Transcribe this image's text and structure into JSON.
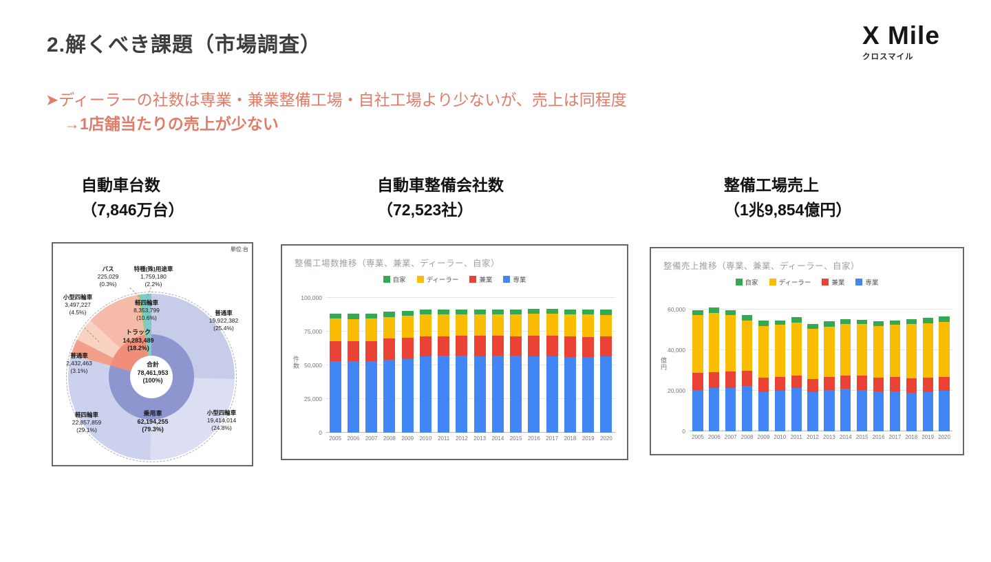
{
  "header": {
    "title": "2.解くべき課題（市場調査）"
  },
  "logo": {
    "name": "X Mile",
    "subtitle": "クロスマイル"
  },
  "callout": {
    "line1": "➤ディーラーの社数は専業・兼業整備工場・自社工場より少ないが、売上は同程度",
    "line2": "→1店舗当たりの売上が少ない",
    "color": "#e07b67"
  },
  "sections": [
    {
      "title": "自動車台数",
      "subtitle": "（7,846万台）"
    },
    {
      "title": "自動車整備会社数",
      "subtitle": "（72,523社）"
    },
    {
      "title": "整備工場売上",
      "subtitle": "（1兆9,854億円）"
    }
  ],
  "chart_data": [
    {
      "type": "pie",
      "title": "自動車台数（7,846万台）",
      "unit_label": "単位:台",
      "inner_ring": [
        {
          "name": "乗用車",
          "value": 62194255,
          "pct": 79.3,
          "color": "#8e96cf"
        },
        {
          "name": "トラック",
          "value": 14283489,
          "pct": 18.2,
          "color": "#f08e7a"
        },
        {
          "name": "バス",
          "value": 225029,
          "pct": 0.3,
          "color": "#b5c95f"
        },
        {
          "name": "特種(殊)用途車",
          "value": 1759180,
          "pct": 2.2,
          "color": "#7ecac4"
        }
      ],
      "outer_ring": [
        {
          "name": "普通車",
          "parent": "乗用車",
          "value": 19922382,
          "pct": 25.4,
          "color": "#c7cce9"
        },
        {
          "name": "小型四輪車",
          "parent": "乗用車",
          "value": 19414014,
          "pct": 24.8,
          "color": "#dcdff3"
        },
        {
          "name": "軽四輪車",
          "parent": "乗用車",
          "value": 22857859,
          "pct": 29.1,
          "color": "#ccd1ed"
        },
        {
          "name": "普通車",
          "parent": "トラック",
          "value": 2432463,
          "pct": 3.1,
          "color": "#f2a08c"
        },
        {
          "name": "小型四輪車",
          "parent": "トラック",
          "value": 3497227,
          "pct": 4.5,
          "color": "#fad2c2"
        },
        {
          "name": "軽四輪車",
          "parent": "トラック",
          "value": 8353799,
          "pct": 10.6,
          "color": "#f6bba8"
        },
        {
          "name": "バス",
          "parent": "バス",
          "value": 225029,
          "pct": 0.3,
          "color": "#b5c95f"
        },
        {
          "name": "特種(殊)用途車",
          "parent": "特種(殊)用途車",
          "value": 1759180,
          "pct": 2.2,
          "color": "#7ecac4"
        }
      ],
      "labels": {
        "bus": {
          "name": "バス",
          "value": "225,029",
          "pct": "(0.3%)"
        },
        "tokushu": {
          "name": "特種(殊)用途車",
          "value": "1,759,180",
          "pct": "(2.2%)"
        },
        "kei_truck": {
          "name": "軽四輪車",
          "value": "8,353,799",
          "pct": "(10.6%)"
        },
        "kogata_truck": {
          "name": "小型四輪車",
          "value": "3,497,227",
          "pct": "(4.5%)"
        },
        "truck": {
          "name": "トラック",
          "value": "14,283,489",
          "pct": "(18.2%)"
        },
        "futsu_truck": {
          "name": "普通車",
          "value": "2,432,463",
          "pct": "(3.1%)"
        },
        "futsu_pass": {
          "name": "普通車",
          "value": "19,922,382",
          "pct": "(25.4%)"
        },
        "total": {
          "name": "合計",
          "value": "78,461,953",
          "pct": "(100%)"
        },
        "jyoyo": {
          "name": "乗用車",
          "value": "62,194,255",
          "pct": "(79.3%)"
        },
        "kei_pass": {
          "name": "軽四輪車",
          "value": "22,857,859",
          "pct": "(29.1%)"
        },
        "kogata_pass": {
          "name": "小型四輪車",
          "value": "19,414,014",
          "pct": "(24.8%)"
        }
      }
    },
    {
      "type": "bar",
      "stacked": true,
      "title": "整備工場数推移（専業、兼業、ディーラー、自家）",
      "ylabel": "件数",
      "categories": [
        "2005",
        "2006",
        "2007",
        "2008",
        "2009",
        "2010",
        "2011",
        "2012",
        "2013",
        "2014",
        "2015",
        "2016",
        "2017",
        "2018",
        "2019",
        "2020"
      ],
      "series": [
        {
          "name": "専業",
          "color": "#4285f4",
          "values": [
            52900,
            53200,
            53300,
            54300,
            54600,
            56500,
            57200,
            57000,
            56800,
            57000,
            57200,
            56800,
            56800,
            56200,
            56100,
            56400
          ]
        },
        {
          "name": "兼業",
          "color": "#ea4335",
          "values": [
            14800,
            14900,
            14800,
            15600,
            15800,
            14700,
            14200,
            14900,
            14900,
            14700,
            14400,
            15400,
            15000,
            15200,
            15000,
            14900
          ]
        },
        {
          "name": "ディーラー",
          "color": "#fbbc04",
          "values": [
            17000,
            16300,
            16600,
            16000,
            16400,
            16500,
            16300,
            16100,
            16100,
            16300,
            16400,
            16200,
            16400,
            16300,
            16600,
            16200
          ]
        },
        {
          "name": "自家",
          "color": "#34a853",
          "values": [
            3700,
            3700,
            3600,
            3800,
            3600,
            3700,
            3600,
            3500,
            3600,
            3600,
            3500,
            3600,
            3500,
            3600,
            3500,
            3600
          ]
        }
      ],
      "legend": [
        "自家",
        "ディーラー",
        "兼業",
        "専業"
      ],
      "yticks": [
        0,
        25000,
        50000,
        75000,
        100000
      ],
      "ylim": [
        0,
        100000
      ],
      "legend_position": "top"
    },
    {
      "type": "bar",
      "stacked": true,
      "title": "整備売上推移（専業、兼業、ディーラー、自家）",
      "ylabel": "億円",
      "categories": [
        "2005",
        "2006",
        "2007",
        "2008",
        "2009",
        "2010",
        "2011",
        "2012",
        "2013",
        "2014",
        "2015",
        "2016",
        "2017",
        "2018",
        "2019",
        "2020"
      ],
      "series": [
        {
          "name": "専業",
          "color": "#4285f4",
          "values": [
            20400,
            21500,
            21500,
            22300,
            19200,
            19900,
            21200,
            19200,
            20200,
            21000,
            20200,
            19700,
            19700,
            19000,
            19400,
            19900
          ]
        },
        {
          "name": "兼業",
          "color": "#ea4335",
          "values": [
            8300,
            7500,
            8000,
            7600,
            7200,
            6700,
            6200,
            6400,
            6700,
            6600,
            7200,
            6700,
            7200,
            7100,
            7000,
            7000
          ]
        },
        {
          "name": "ディーラー",
          "color": "#fbbc04",
          "values": [
            28400,
            29100,
            27600,
            24800,
            25600,
            25800,
            26200,
            25000,
            24700,
            25100,
            25300,
            25600,
            25500,
            26600,
            26800,
            26800
          ]
        },
        {
          "name": "自家",
          "color": "#34a853",
          "values": [
            2400,
            2800,
            2600,
            2600,
            2400,
            2300,
            2700,
            2400,
            2600,
            2600,
            2300,
            2300,
            2300,
            2600,
            2800,
            2800
          ]
        }
      ],
      "legend": [
        "自家",
        "ディーラー",
        "兼業",
        "専業"
      ],
      "yticks": [
        0,
        20000,
        40000,
        60000
      ],
      "ylim": [
        0,
        63000
      ],
      "legend_position": "top"
    }
  ]
}
